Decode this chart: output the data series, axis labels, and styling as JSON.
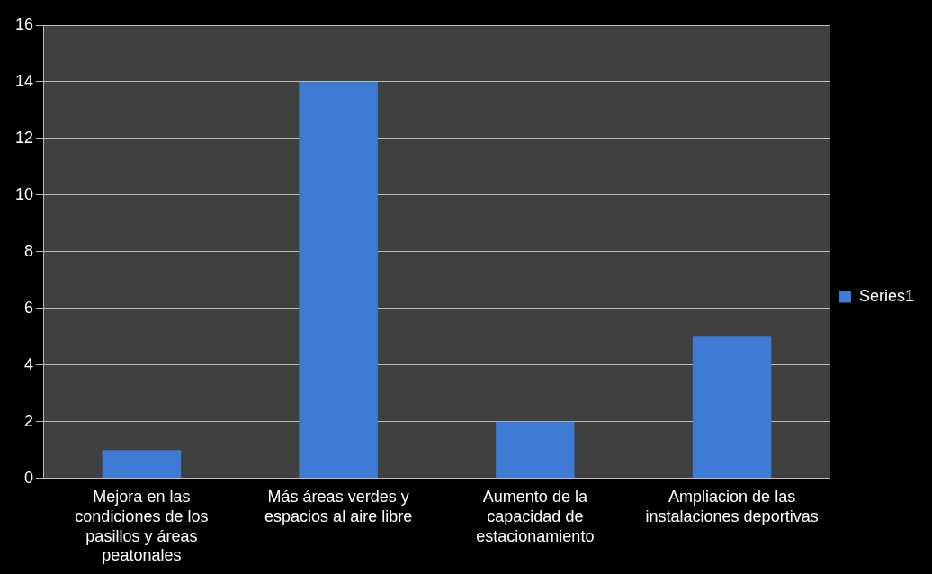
{
  "chart_data": {
    "type": "bar",
    "categories": [
      "Mejora en las condiciones de los pasillos y áreas peatonales",
      "Más áreas verdes y espacios al aire libre",
      "Aumento de la capacidad de estacionamiento",
      "Ampliacion de las instalaciones deportivas"
    ],
    "series": [
      {
        "name": "Series1",
        "color": "#3d7bd4",
        "values": [
          1,
          14,
          2,
          5
        ]
      }
    ],
    "ylim": [
      0,
      16
    ],
    "yticks": [
      0,
      2,
      4,
      6,
      8,
      10,
      12,
      14,
      16
    ],
    "grid": "y",
    "legend": "right"
  }
}
